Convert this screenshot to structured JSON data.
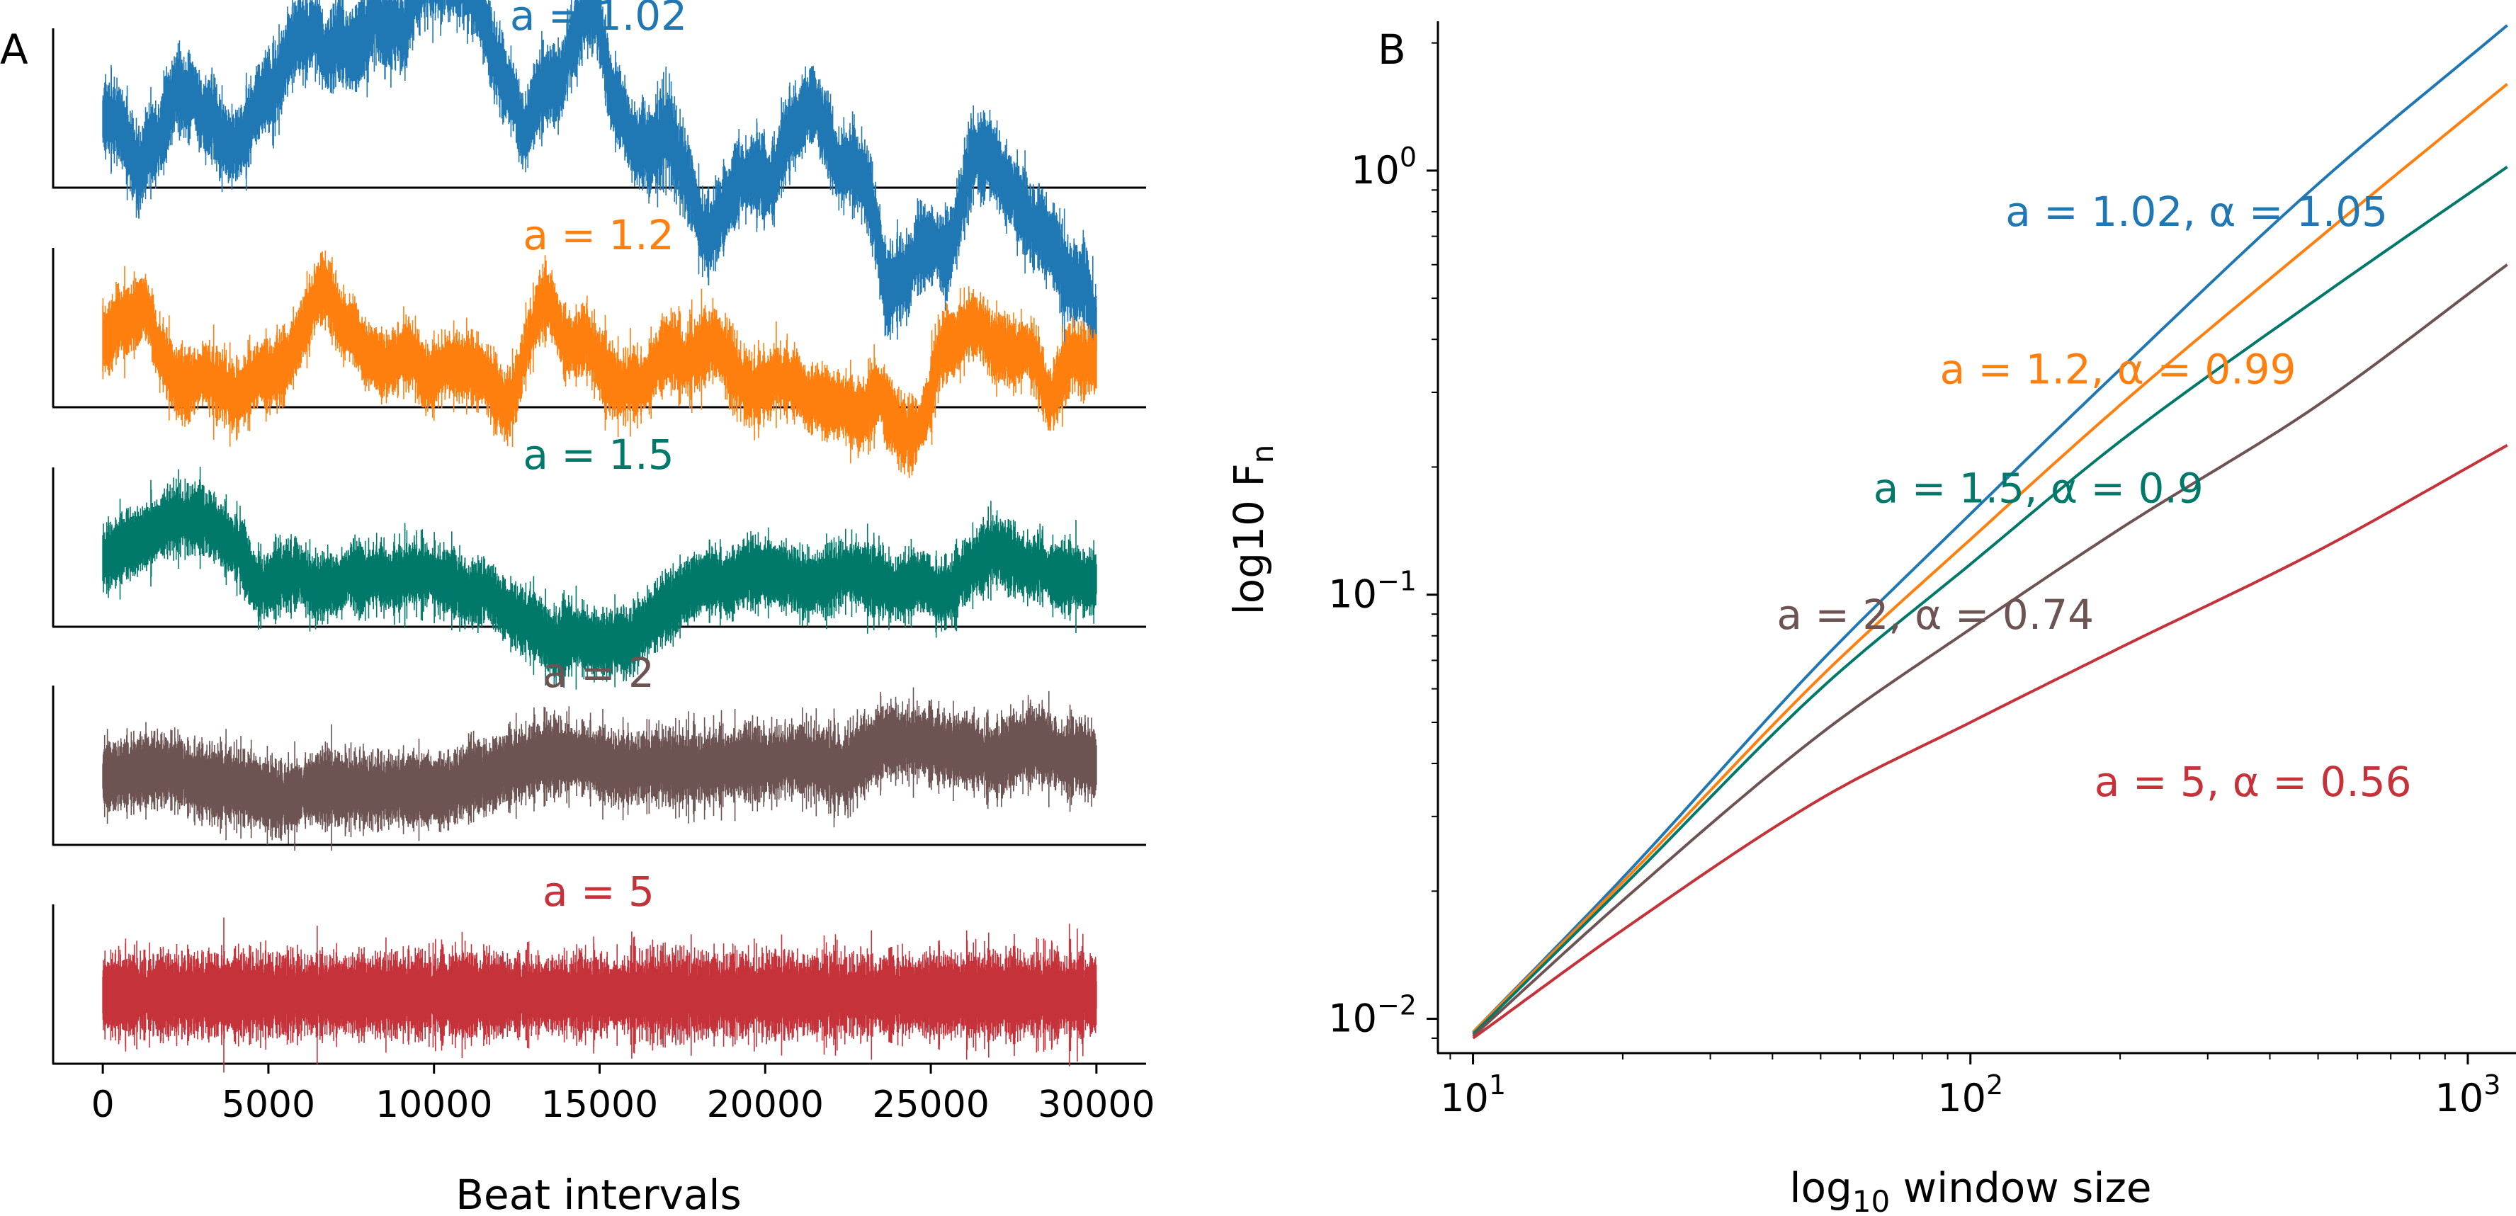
{
  "chart_data": [
    {
      "panel_label": "A",
      "type": "line",
      "xlabel": "Beat intervals",
      "xlim": [
        -1500,
        31500
      ],
      "xticks": [
        0,
        5000,
        10000,
        15000,
        20000,
        25000,
        30000
      ],
      "xtick_labels": [
        "0",
        "5000",
        "10000",
        "15000",
        "20000",
        "25000",
        "30000"
      ],
      "n_points": 30000,
      "series": [
        {
          "name": "a = 1.02",
          "a": 1.02,
          "color": "#1f77b4"
        },
        {
          "name": "a = 1.2",
          "a": 1.2,
          "color": "#ff7f0e"
        },
        {
          "name": "a = 1.5",
          "a": 1.5,
          "color": "#00796b"
        },
        {
          "name": "a = 2",
          "a": 2,
          "color": "#6d5352"
        },
        {
          "name": "a = 5",
          "a": 5,
          "color": "#c6323a"
        }
      ]
    },
    {
      "panel_label": "B",
      "type": "line",
      "xlabel_main": "log",
      "xlabel_sub": "10",
      "xlabel_rest": " window size",
      "ylabel_main": "log10 F",
      "ylabel_sub": "n",
      "xscale": "log",
      "yscale": "log",
      "xlim": [
        8.5,
        1250
      ],
      "ylim": [
        0.0083,
        2.25
      ],
      "xticks": [
        10,
        100,
        1000
      ],
      "xtick_base": [
        "10",
        "10",
        "10"
      ],
      "xtick_exp": [
        "1",
        "2",
        "3"
      ],
      "yticks": [
        0.01,
        0.1,
        1
      ],
      "ytick_base": [
        "10",
        "10",
        "10"
      ],
      "ytick_exp": [
        "−2",
        "−1",
        "0"
      ],
      "series": [
        {
          "name": "a = 1.02, α = 1.05",
          "color": "#1f77b4",
          "x": [
            10,
            20,
            50,
            100,
            200,
            500,
            1200
          ],
          "y": [
            0.0093,
            0.0215,
            0.0695,
            0.155,
            0.34,
            0.93,
            2.2
          ]
        },
        {
          "name": "a = 1.2, α = 0.99",
          "color": "#ff7f0e",
          "x": [
            10,
            20,
            50,
            100,
            200,
            500,
            1200
          ],
          "y": [
            0.0093,
            0.021,
            0.064,
            0.135,
            0.28,
            0.69,
            1.6
          ]
        },
        {
          "name": "a = 1.5, α = 0.9",
          "color": "#00796b",
          "x": [
            10,
            20,
            50,
            100,
            200,
            500,
            1200
          ],
          "y": [
            0.0092,
            0.0205,
            0.06,
            0.118,
            0.23,
            0.5,
            1.02
          ]
        },
        {
          "name": "a = 2, α = 0.74",
          "color": "#6d5352",
          "x": [
            10,
            20,
            50,
            100,
            200,
            500,
            1200
          ],
          "y": [
            0.0091,
            0.019,
            0.047,
            0.083,
            0.143,
            0.28,
            0.6
          ]
        },
        {
          "name": "a = 5, α = 0.56",
          "color": "#c6323a",
          "x": [
            10,
            20,
            50,
            100,
            200,
            500,
            1200
          ],
          "y": [
            0.009,
            0.0162,
            0.033,
            0.05,
            0.075,
            0.127,
            0.225
          ]
        }
      ]
    }
  ]
}
